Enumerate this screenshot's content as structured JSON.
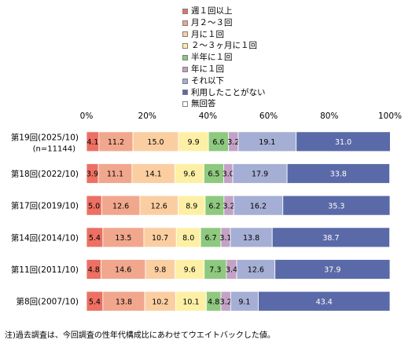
{
  "chart_data": {
    "type": "bar",
    "stacked": true,
    "orientation": "horizontal",
    "percent_axis_ticks": [
      "0%",
      "20%",
      "40%",
      "60%",
      "80%",
      "100%"
    ],
    "xlim": [
      0,
      100
    ],
    "legend_position": "top",
    "categories": [
      [
        "第19回(2025/10)",
        "(n=11144)"
      ],
      [
        "第18回(2022/10)"
      ],
      [
        "第17回(2019/10)"
      ],
      [
        "第14回(2014/10)"
      ],
      [
        "第11回(2011/10)"
      ],
      [
        "第8回(2007/10)"
      ]
    ],
    "series": [
      {
        "name": "週１回以上",
        "color": "#ec7063",
        "values": [
          4.1,
          3.9,
          5.0,
          5.4,
          4.8,
          5.4
        ]
      },
      {
        "name": "月２～３回",
        "color": "#f1a78d",
        "values": [
          11.2,
          11.1,
          12.6,
          13.5,
          14.6,
          13.8
        ]
      },
      {
        "name": "月に１回",
        "color": "#fbcea2",
        "values": [
          15.0,
          14.1,
          12.6,
          10.7,
          9.8,
          10.2
        ]
      },
      {
        "name": "２～３ヶ月に１回",
        "color": "#fdf0a6",
        "values": [
          9.9,
          9.6,
          8.9,
          8.0,
          9.6,
          10.1
        ]
      },
      {
        "name": "半年に１回",
        "color": "#8fc87f",
        "values": [
          6.6,
          6.5,
          6.2,
          6.7,
          7.3,
          4.8
        ]
      },
      {
        "name": "年に１回",
        "color": "#c3a2c6",
        "values": [
          3.2,
          3.0,
          3.2,
          3.1,
          3.4,
          3.2
        ]
      },
      {
        "name": "それ以下",
        "color": "#a5aed4",
        "values": [
          19.1,
          17.9,
          16.2,
          13.8,
          12.6,
          9.1
        ]
      },
      {
        "name": "利用したことがない",
        "color": "#5a6aa8",
        "values": [
          31.0,
          33.8,
          35.3,
          38.7,
          37.9,
          43.4
        ]
      },
      {
        "name": "無回答",
        "color": "#ffffff",
        "values": [
          0,
          0,
          0,
          0,
          0,
          0
        ]
      }
    ],
    "grid": false
  },
  "footnote": "注)過去調査は、今回調査の性年代構成比にあわせてウエイトバックした値。"
}
